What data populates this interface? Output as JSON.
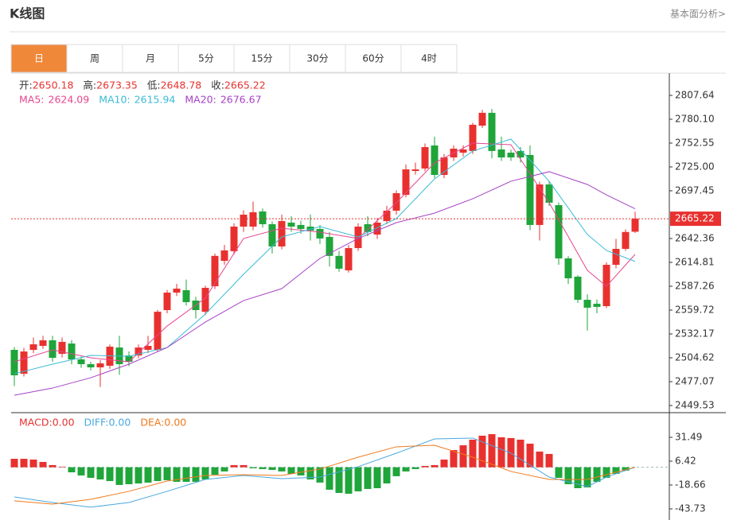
{
  "header": {
    "title": "K线图",
    "link": "基本面分析>"
  },
  "tabs": [
    "日",
    "周",
    "月",
    "5分",
    "15分",
    "30分",
    "60分",
    "4时"
  ],
  "active_tab": 0,
  "chart_data": [
    {
      "type": "candlestick",
      "ohlc_labels": [
        "开:",
        "高:",
        "低:",
        "收:"
      ],
      "up_color": "#e8312f",
      "down_color": "#1fa53a",
      "open": [
        2513.8,
        2486.2,
        2513.8,
        2518.4,
        2524.8,
        2509.2,
        2521.1,
        2502.8,
        2497.3,
        2493.6,
        2495.4,
        2516.5,
        2507.3,
        2507.3,
        2513.8,
        2513.8,
        2559.7,
        2579.9,
        2582.7,
        2570.7,
        2557.8,
        2587.3,
        2616.6,
        2627.7,
        2656.1,
        2656.1,
        2673.6,
        2658.9,
        2633.2,
        2660.7,
        2658.0,
        2656.1,
        2653.4,
        2644.2,
        2622.3,
        2605.6,
        2631.3,
        2658.9,
        2646.9,
        2662.5,
        2674.5,
        2692.8,
        2720.4,
        2723.2,
        2749.8,
        2715.8,
        2736.0,
        2741.5,
        2743.4,
        2772.7,
        2787.5,
        2745.2,
        2741.5,
        2743.4,
        2738.8,
        2658.0,
        2704.8,
        2680.9,
        2619.4,
        2598.3,
        2571.6,
        2567.0,
        2564.3,
        2612.0,
        2630.4,
        2650.18
      ],
      "high": [
        2517,
        2516,
        2528,
        2530,
        2530,
        2528,
        2525,
        2506,
        2500,
        2502,
        2520,
        2530,
        2512,
        2520,
        2530,
        2560,
        2583,
        2590,
        2595,
        2575,
        2588,
        2625,
        2635,
        2660,
        2675,
        2685,
        2677,
        2662,
        2670,
        2668,
        2663,
        2670,
        2658,
        2650,
        2628,
        2635,
        2660,
        2668,
        2666,
        2680,
        2698,
        2728,
        2730,
        2752,
        2760,
        2740,
        2750,
        2750,
        2776,
        2791,
        2792,
        2760,
        2745,
        2748,
        2750,
        2708,
        2708,
        2684,
        2622,
        2600,
        2578,
        2572,
        2615,
        2642,
        2653,
        2673.35
      ],
      "low": [
        2472,
        2483,
        2510,
        2515,
        2500,
        2505,
        2497,
        2493,
        2490,
        2471,
        2492,
        2485,
        2495,
        2504,
        2510,
        2511,
        2556,
        2576,
        2565,
        2550,
        2554,
        2584,
        2612,
        2624,
        2650,
        2652,
        2655,
        2625,
        2630,
        2650,
        2648,
        2640,
        2636,
        2610,
        2604,
        2603,
        2628,
        2645,
        2642,
        2659,
        2670,
        2690,
        2716,
        2720,
        2712,
        2712,
        2732,
        2737,
        2740,
        2770,
        2735,
        2732,
        2732,
        2730,
        2652,
        2640,
        2680,
        2612,
        2590,
        2568,
        2536,
        2556,
        2562,
        2608,
        2628,
        2648.78
      ],
      "close": [
        2484.4,
        2511.9,
        2520.2,
        2524.8,
        2504.6,
        2523.0,
        2502.8,
        2497.3,
        2493.6,
        2498.2,
        2517.5,
        2497.3,
        2500.0,
        2516.5,
        2518.4,
        2557.8,
        2579.9,
        2584.5,
        2568.9,
        2559.7,
        2585.4,
        2622.3,
        2628.6,
        2656.1,
        2669.9,
        2672.7,
        2658.9,
        2633.2,
        2662.5,
        2656.1,
        2653.4,
        2651.5,
        2642.4,
        2622.3,
        2607.5,
        2631.3,
        2656.1,
        2649.7,
        2660.7,
        2674.5,
        2694.7,
        2722.2,
        2722.2,
        2747.9,
        2715.8,
        2736.0,
        2746.1,
        2745.2,
        2773.7,
        2787.5,
        2743.4,
        2736.0,
        2736.0,
        2736.0,
        2658.0,
        2704.8,
        2683.7,
        2619.4,
        2596.4,
        2571.6,
        2562.5,
        2563.4,
        2612.0,
        2630.4,
        2649.9,
        2665.22
      ],
      "series": [
        {
          "name": "MA5:",
          "color": "#e6468f",
          "x": [
            0,
            4,
            8,
            12,
            16,
            20,
            24,
            28,
            32,
            36,
            40,
            44,
            48,
            52,
            56,
            60,
            62,
            65
          ],
          "values": [
            2500.0,
            2513.8,
            2504.6,
            2500.0,
            2541.3,
            2573.5,
            2642.4,
            2654.3,
            2649.7,
            2642.4,
            2683.7,
            2729.6,
            2752.5,
            2750.7,
            2683.7,
            2605.6,
            2587.3,
            2624.09
          ]
        },
        {
          "name": "MA10:",
          "color": "#3bbbd6",
          "x": [
            0,
            4,
            8,
            12,
            16,
            20,
            24,
            28,
            32,
            36,
            40,
            44,
            48,
            52,
            56,
            60,
            62,
            65
          ],
          "values": [
            2486.2,
            2497.3,
            2507.4,
            2506.4,
            2516.5,
            2555.1,
            2601.0,
            2644.2,
            2656.1,
            2644.2,
            2665.3,
            2711.2,
            2743.4,
            2757.1,
            2708.5,
            2647.0,
            2628.6,
            2615.94
          ]
        },
        {
          "name": "MA20:",
          "color": "#a642c6",
          "x": [
            0,
            4,
            8,
            12,
            16,
            20,
            24,
            28,
            32,
            36,
            40,
            44,
            48,
            52,
            56,
            60,
            62,
            65
          ],
          "values": [
            2461.4,
            2469.7,
            2481.6,
            2497.3,
            2516.5,
            2545.9,
            2570.7,
            2584.5,
            2619.4,
            2642.4,
            2660.7,
            2671.7,
            2688.3,
            2708.5,
            2719.5,
            2704.8,
            2692.8,
            2676.67
          ]
        }
      ],
      "ylim": [
        2442.2,
        2833.3
      ],
      "yticks": [
        2807.64,
        {
          "value": 2780.1,
          "label": "2780.10"
        },
        2752.55,
        {
          "value": 2725,
          "label": "2725.00"
        },
        2697.45,
        2642.36,
        2614.81,
        2587.26,
        2559.72,
        2532.17,
        2504.62,
        2477.07,
        2449.53
      ]
    },
    {
      "type": "macd",
      "bars": {
        "name": "MACD:",
        "legend_value": "0.00",
        "up_color": "#e8312f",
        "down_color": "#1fa53a",
        "values": [
          8.9,
          8.9,
          8.1,
          5.6,
          2.3,
          0.6,
          -5.3,
          -8.6,
          -11.1,
          -12.8,
          -14.5,
          -18.6,
          -17.8,
          -17.0,
          -16.1,
          -14.5,
          -13.6,
          -15.3,
          -15.3,
          -15.3,
          -12.8,
          -7.8,
          -4.4,
          2.3,
          2.3,
          -1.1,
          -1.9,
          -2.8,
          -4.4,
          -6.9,
          -8.6,
          -12.8,
          -16.1,
          -23.6,
          -27.0,
          -27.8,
          -25.3,
          -22.8,
          -22.0,
          -17.0,
          -9.4,
          -4.4,
          -1.9,
          1.4,
          2.3,
          8.1,
          18.1,
          23.1,
          29.0,
          33.2,
          34.8,
          31.5,
          30.7,
          29.0,
          24.8,
          16.5,
          14.0,
          -11.1,
          -17.8,
          -22.0,
          -21.2,
          -15.3,
          -11.1,
          -6.9,
          -3.6,
          0
        ]
      },
      "series": [
        {
          "name": "DIFF:",
          "legend_value": "0.00",
          "color": "#4aa8e0",
          "x": [
            0,
            4,
            8,
            12,
            16,
            20,
            24,
            28,
            32,
            36,
            40,
            44,
            48,
            52,
            56,
            60,
            62,
            65
          ],
          "values": [
            -31.2,
            -37.0,
            -42.0,
            -37.0,
            -25.3,
            -12.8,
            -8.6,
            -12.0,
            -10.3,
            0.6,
            14.8,
            29.8,
            30.7,
            14.8,
            -10.3,
            -20.3,
            -10.3,
            0
          ]
        },
        {
          "name": "DEA:",
          "legend_value": "0.00",
          "color": "#f07a1c",
          "x": [
            0,
            4,
            8,
            12,
            16,
            20,
            24,
            28,
            32,
            36,
            40,
            44,
            48,
            52,
            56,
            60,
            62,
            65
          ],
          "values": [
            -35.3,
            -38.7,
            -33.7,
            -25.3,
            -14.5,
            -8.6,
            -7.8,
            -8.6,
            -1.9,
            10.6,
            21.5,
            23.1,
            10.6,
            -4.4,
            -12.8,
            -12.8,
            -7.8,
            0
          ]
        }
      ],
      "ylim": [
        -53.76,
        56.56
      ],
      "yticks": [
        31.49,
        6.42,
        -18.66,
        -43.73
      ]
    }
  ]
}
